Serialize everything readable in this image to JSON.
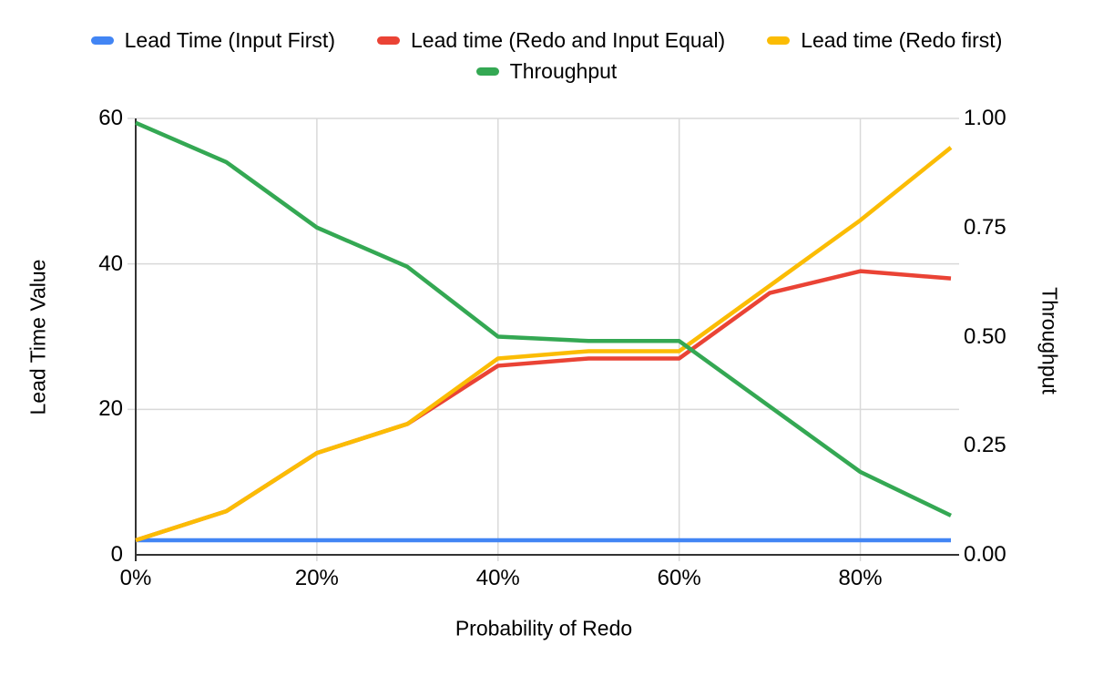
{
  "chart_data": {
    "type": "line",
    "title": "",
    "legend_position": "top",
    "grid": true,
    "x_axis": {
      "title": "Probability of Redo",
      "categories": [
        "0%",
        "10%",
        "20%",
        "30%",
        "40%",
        "50%",
        "60%",
        "70%",
        "80%",
        "90%"
      ],
      "tick_labels": [
        "0%",
        "20%",
        "40%",
        "60%",
        "80%"
      ]
    },
    "y_left_axis": {
      "title": "Lead Time Value",
      "min": 0,
      "max": 60,
      "tick_labels": [
        "0",
        "20",
        "40",
        "60"
      ]
    },
    "y_right_axis": {
      "title": "Throughput",
      "min": 0,
      "max": 1,
      "tick_labels": [
        "0.00",
        "0.25",
        "0.50",
        "0.75",
        "1.00"
      ]
    },
    "series": [
      {
        "name": "Lead Time (Input First)",
        "color": "#4285F4",
        "axis": "left",
        "values": [
          2,
          2,
          2,
          2,
          2,
          2,
          2,
          2,
          2,
          2
        ]
      },
      {
        "name": "Lead time (Redo and Input Equal)",
        "color": "#EA4335",
        "axis": "left",
        "values": [
          2,
          6,
          14,
          18,
          26,
          27,
          27,
          36,
          39,
          38
        ]
      },
      {
        "name": "Lead time (Redo first)",
        "color": "#FBBC04",
        "axis": "left",
        "values": [
          2,
          6,
          14,
          18,
          27,
          28,
          28,
          37,
          46,
          56
        ]
      },
      {
        "name": "Throughput",
        "color": "#34A853",
        "axis": "right",
        "values": [
          0.99,
          0.9,
          0.75,
          0.66,
          0.5,
          0.49,
          0.49,
          0.34,
          0.19,
          0.09
        ]
      }
    ]
  },
  "colors": {
    "gridline": "#d9d9d9",
    "axis_line": "#333333",
    "text": "#000000",
    "background": "#ffffff"
  }
}
